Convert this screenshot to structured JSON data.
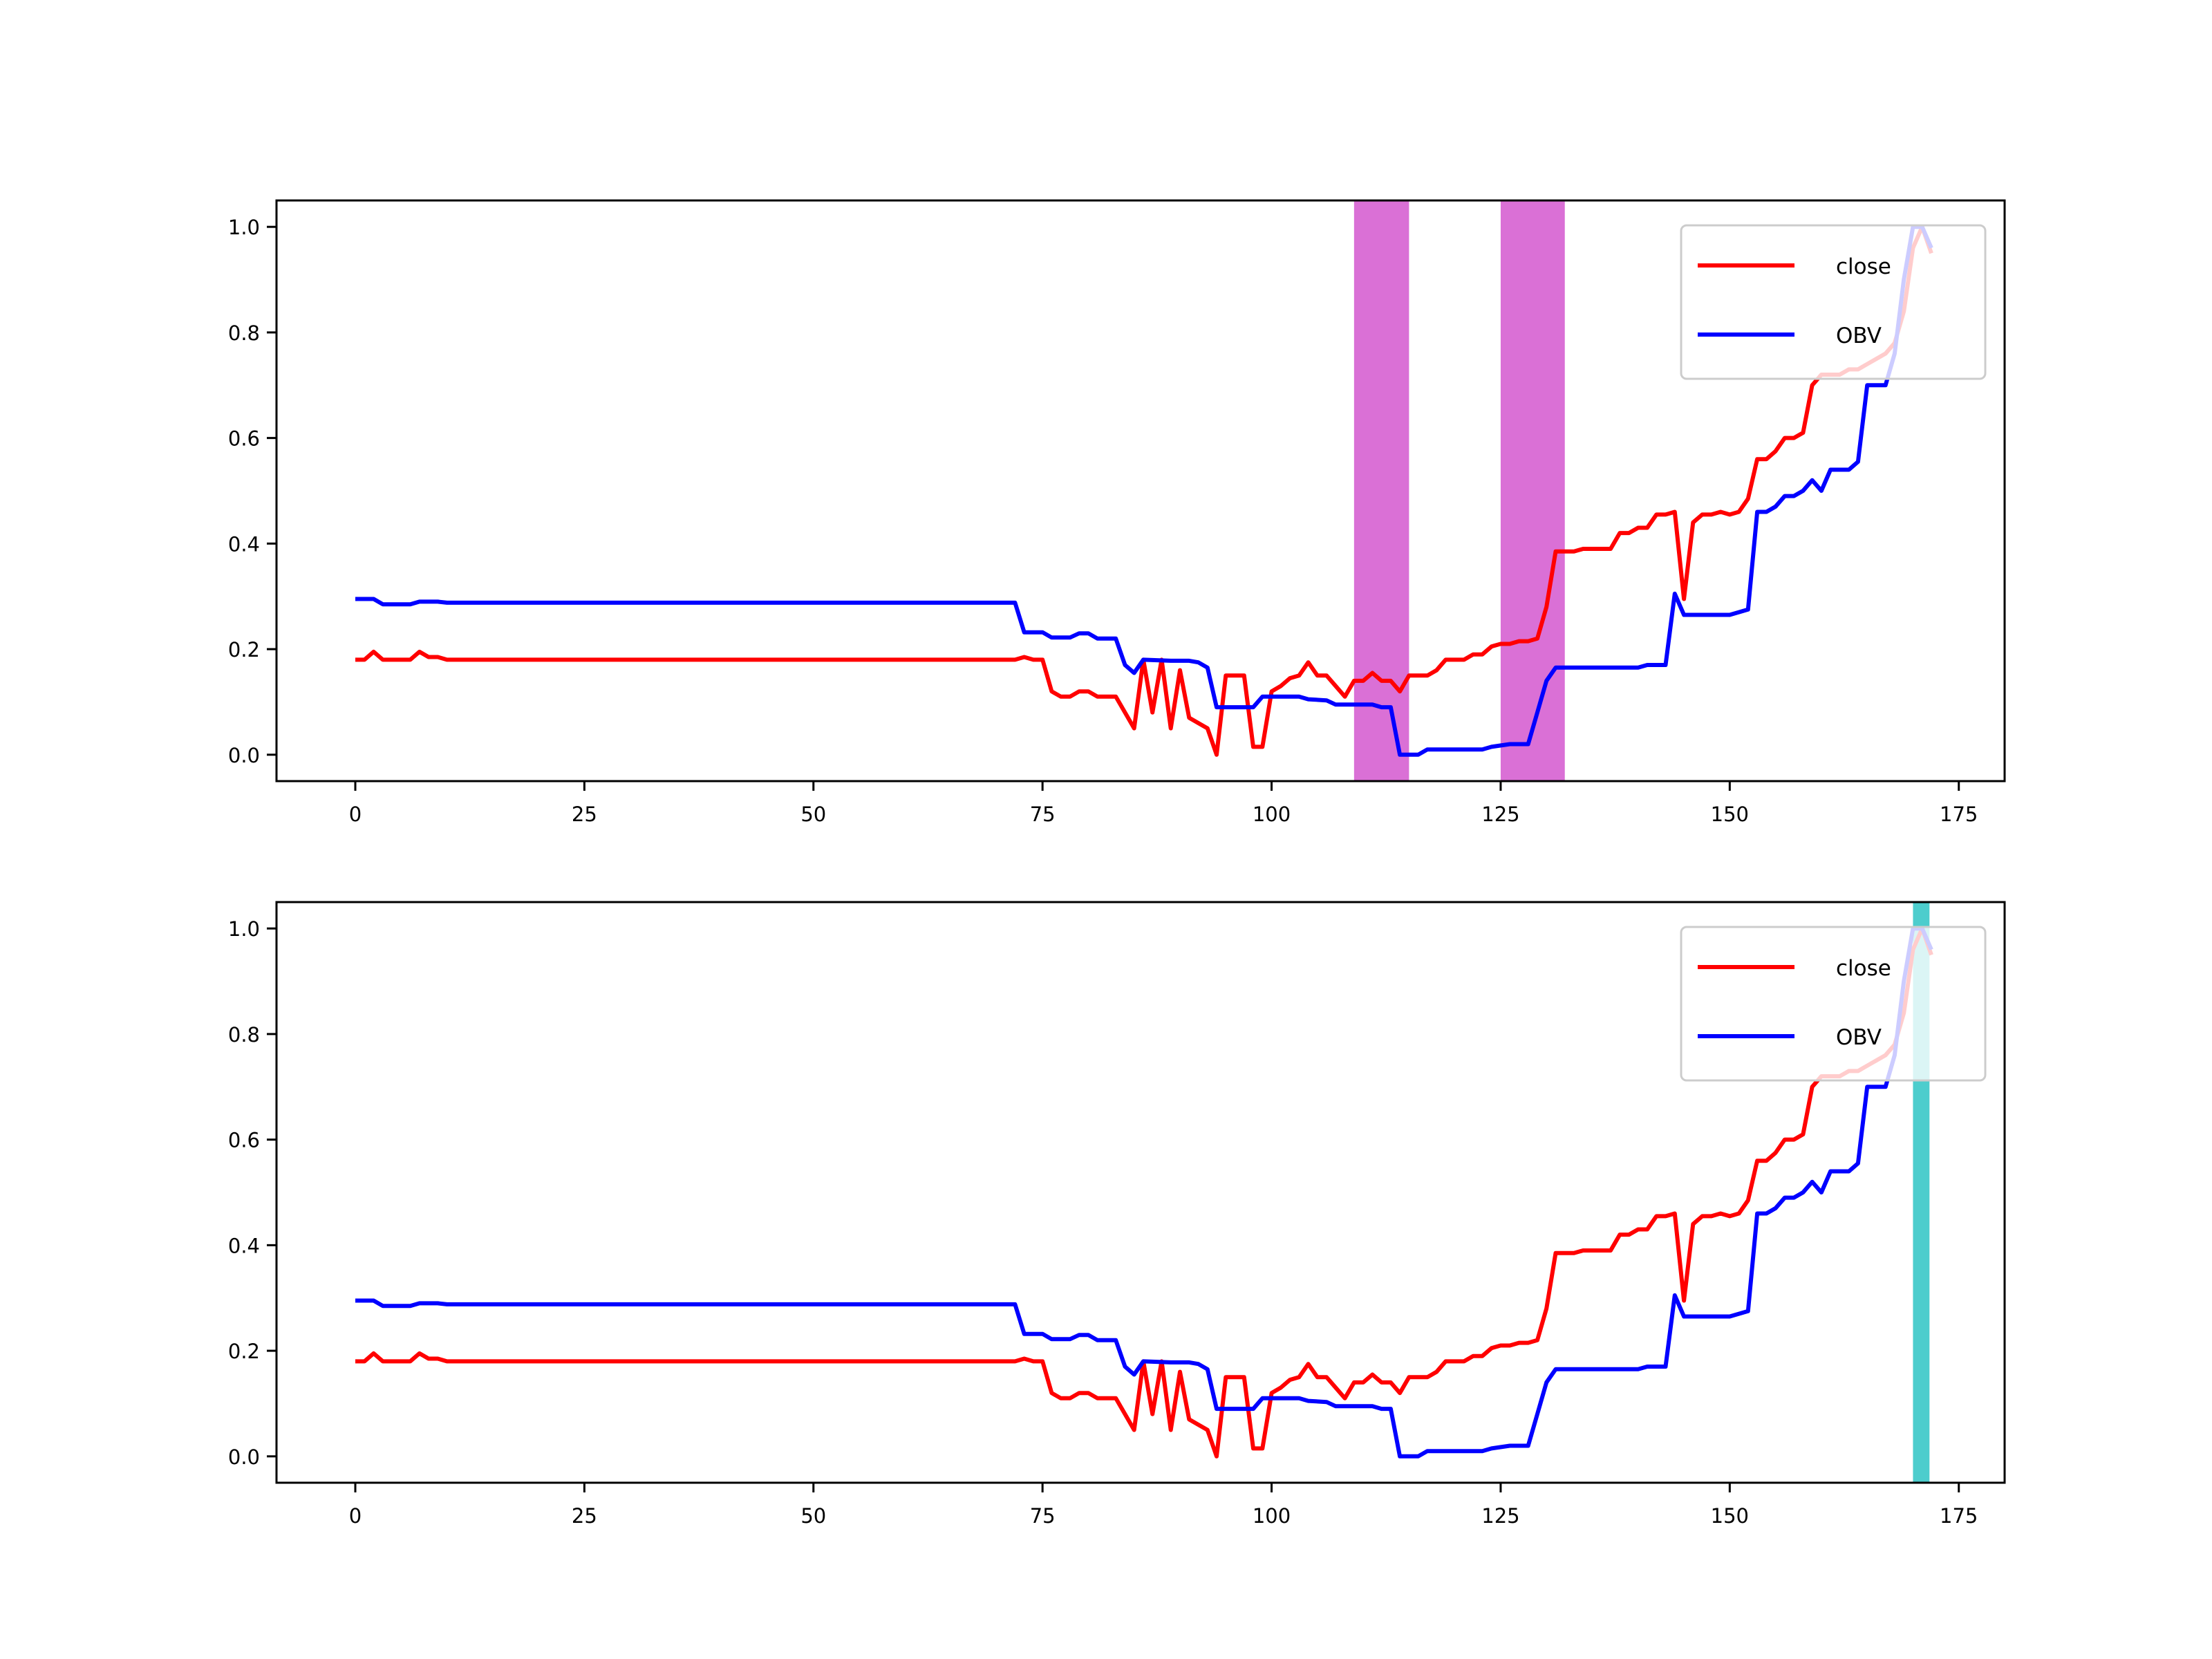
{
  "chart_data": [
    {
      "type": "line",
      "xlim": [
        -8.6,
        180
      ],
      "ylim": [
        -0.05,
        1.05
      ],
      "xticks": [
        0,
        25,
        50,
        75,
        100,
        125,
        150,
        175
      ],
      "yticks": [
        "0.0",
        "0.2",
        "0.4",
        "0.6",
        "0.8",
        "1.0"
      ],
      "legend_position": "top-right",
      "grid": false,
      "spans": [
        {
          "x0": 109,
          "x1": 115,
          "color": "#da70d6"
        },
        {
          "x0": 125,
          "x1": 132,
          "color": "#da70d6"
        }
      ],
      "series": [
        {
          "name": "close",
          "color": "#ff0000",
          "points": [
            [
              0,
              0.18
            ],
            [
              1,
              0.18
            ],
            [
              2,
              0.195
            ],
            [
              3,
              0.18
            ],
            [
              4,
              0.18
            ],
            [
              5,
              0.18
            ],
            [
              6,
              0.18
            ],
            [
              7,
              0.195
            ],
            [
              8,
              0.185
            ],
            [
              9,
              0.185
            ],
            [
              10,
              0.18
            ],
            [
              72,
              0.18
            ],
            [
              73,
              0.185
            ],
            [
              74,
              0.18
            ],
            [
              75,
              0.18
            ],
            [
              76,
              0.12
            ],
            [
              77,
              0.11
            ],
            [
              78,
              0.11
            ],
            [
              79,
              0.12
            ],
            [
              80,
              0.12
            ],
            [
              81,
              0.11
            ],
            [
              82,
              0.11
            ],
            [
              83,
              0.11
            ],
            [
              84,
              0.08
            ],
            [
              85,
              0.05
            ],
            [
              86,
              0.18
            ],
            [
              87,
              0.08
            ],
            [
              88,
              0.18
            ],
            [
              89,
              0.05
            ],
            [
              90,
              0.16
            ],
            [
              91,
              0.07
            ],
            [
              92,
              0.06
            ],
            [
              93,
              0.05
            ],
            [
              94,
              0.0
            ],
            [
              95,
              0.15
            ],
            [
              96,
              0.15
            ],
            [
              97,
              0.15
            ],
            [
              98,
              0.015
            ],
            [
              99,
              0.015
            ],
            [
              100,
              0.12
            ],
            [
              101,
              0.13
            ],
            [
              102,
              0.145
            ],
            [
              103,
              0.15
            ],
            [
              104,
              0.175
            ],
            [
              105,
              0.15
            ],
            [
              106,
              0.15
            ],
            [
              107,
              0.13
            ],
            [
              108,
              0.11
            ],
            [
              109,
              0.14
            ],
            [
              110,
              0.14
            ],
            [
              111,
              0.155
            ],
            [
              112,
              0.14
            ],
            [
              113,
              0.14
            ],
            [
              114,
              0.12
            ],
            [
              115,
              0.15
            ],
            [
              116,
              0.15
            ],
            [
              117,
              0.15
            ],
            [
              118,
              0.16
            ],
            [
              119,
              0.18
            ],
            [
              120,
              0.18
            ],
            [
              121,
              0.18
            ],
            [
              122,
              0.19
            ],
            [
              123,
              0.19
            ],
            [
              124,
              0.205
            ],
            [
              125,
              0.21
            ],
            [
              126,
              0.21
            ],
            [
              127,
              0.215
            ],
            [
              128,
              0.215
            ],
            [
              129,
              0.22
            ],
            [
              130,
              0.28
            ],
            [
              131,
              0.385
            ],
            [
              132,
              0.385
            ],
            [
              133,
              0.385
            ],
            [
              134,
              0.39
            ],
            [
              135,
              0.39
            ],
            [
              136,
              0.39
            ],
            [
              137,
              0.39
            ],
            [
              138,
              0.42
            ],
            [
              139,
              0.42
            ],
            [
              140,
              0.43
            ],
            [
              141,
              0.43
            ],
            [
              142,
              0.455
            ],
            [
              143,
              0.455
            ],
            [
              144,
              0.46
            ],
            [
              145,
              0.295
            ],
            [
              146,
              0.44
            ],
            [
              147,
              0.455
            ],
            [
              148,
              0.455
            ],
            [
              149,
              0.46
            ],
            [
              150,
              0.455
            ],
            [
              151,
              0.46
            ],
            [
              152,
              0.485
            ],
            [
              153,
              0.56
            ],
            [
              154,
              0.56
            ],
            [
              155,
              0.575
            ],
            [
              156,
              0.6
            ],
            [
              157,
              0.6
            ],
            [
              158,
              0.61
            ],
            [
              159,
              0.7
            ],
            [
              160,
              0.72
            ],
            [
              161,
              0.72
            ],
            [
              162,
              0.72
            ],
            [
              163,
              0.73
            ],
            [
              164,
              0.73
            ],
            [
              165,
              0.74
            ],
            [
              166,
              0.75
            ],
            [
              167,
              0.76
            ],
            [
              168,
              0.78
            ],
            [
              169,
              0.84
            ],
            [
              170,
              0.96
            ],
            [
              171,
              1.0
            ],
            [
              172,
              0.95
            ]
          ]
        },
        {
          "name": "OBV",
          "color": "#0000ff",
          "points": [
            [
              0,
              0.295
            ],
            [
              2,
              0.295
            ],
            [
              3,
              0.285
            ],
            [
              6,
              0.285
            ],
            [
              7,
              0.29
            ],
            [
              9,
              0.29
            ],
            [
              10,
              0.288
            ],
            [
              72,
              0.288
            ],
            [
              73,
              0.232
            ],
            [
              75,
              0.232
            ],
            [
              76,
              0.222
            ],
            [
              78,
              0.222
            ],
            [
              79,
              0.23
            ],
            [
              80,
              0.23
            ],
            [
              81,
              0.22
            ],
            [
              83,
              0.22
            ],
            [
              84,
              0.17
            ],
            [
              85,
              0.155
            ],
            [
              86,
              0.18
            ],
            [
              89,
              0.178
            ],
            [
              90,
              0.178
            ],
            [
              91,
              0.178
            ],
            [
              92,
              0.175
            ],
            [
              93,
              0.165
            ],
            [
              94,
              0.09
            ],
            [
              98,
              0.09
            ],
            [
              99,
              0.11
            ],
            [
              103,
              0.11
            ],
            [
              104,
              0.105
            ],
            [
              106,
              0.103
            ],
            [
              107,
              0.095
            ],
            [
              111,
              0.095
            ],
            [
              112,
              0.09
            ],
            [
              113,
              0.09
            ],
            [
              114,
              0.0
            ],
            [
              116,
              0.0
            ],
            [
              117,
              0.01
            ],
            [
              123,
              0.01
            ],
            [
              124,
              0.015
            ],
            [
              126,
              0.02
            ],
            [
              128,
              0.02
            ],
            [
              129,
              0.08
            ],
            [
              130,
              0.14
            ],
            [
              131,
              0.165
            ],
            [
              140,
              0.165
            ],
            [
              141,
              0.17
            ],
            [
              143,
              0.17
            ],
            [
              144,
              0.305
            ],
            [
              145,
              0.265
            ],
            [
              150,
              0.265
            ],
            [
              151,
              0.27
            ],
            [
              152,
              0.275
            ],
            [
              153,
              0.46
            ],
            [
              154,
              0.46
            ],
            [
              155,
              0.47
            ],
            [
              156,
              0.49
            ],
            [
              157,
              0.49
            ],
            [
              158,
              0.5
            ],
            [
              159,
              0.52
            ],
            [
              160,
              0.5
            ],
            [
              161,
              0.54
            ],
            [
              163,
              0.54
            ],
            [
              164,
              0.555
            ],
            [
              165,
              0.7
            ],
            [
              167,
              0.7
            ],
            [
              168,
              0.76
            ],
            [
              169,
              0.9
            ],
            [
              170,
              1.0
            ],
            [
              171,
              1.0
            ],
            [
              172,
              0.96
            ]
          ]
        }
      ]
    },
    {
      "type": "line",
      "xlim": [
        -8.6,
        180
      ],
      "ylim": [
        -0.05,
        1.05
      ],
      "xticks": [
        0,
        25,
        50,
        75,
        100,
        125,
        150,
        175
      ],
      "yticks": [
        "0.0",
        "0.2",
        "0.4",
        "0.6",
        "0.8",
        "1.0"
      ],
      "legend_position": "top-right",
      "grid": false,
      "spans": [
        {
          "x0": 170,
          "x1": 171.8,
          "color": "#20c0c0"
        }
      ],
      "series": [
        {
          "name": "close",
          "color": "#ff0000",
          "same_as_first": true
        },
        {
          "name": "OBV",
          "color": "#0000ff",
          "same_as_first": true
        }
      ]
    }
  ],
  "legend": {
    "close_label": "close",
    "obv_label": "OBV"
  }
}
